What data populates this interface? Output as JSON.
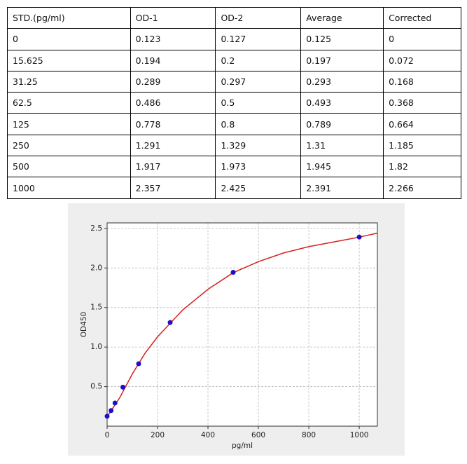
{
  "table": {
    "header": [
      "STD.(pg/ml)",
      "OD-1",
      "OD-2",
      "Average",
      "Corrected"
    ],
    "rows": [
      [
        "0",
        "0.123",
        "0.127",
        "0.125",
        "0"
      ],
      [
        "15.625",
        "0.194",
        "0.2",
        "0.197",
        "0.072"
      ],
      [
        "31.25",
        "0.289",
        "0.297",
        "0.293",
        "0.168"
      ],
      [
        "62.5",
        "0.486",
        "0.5",
        "0.493",
        "0.368"
      ],
      [
        "125",
        "0.778",
        "0.8",
        "0.789",
        "0.664"
      ],
      [
        "250",
        "1.291",
        "1.329",
        "1.31",
        "1.185"
      ],
      [
        "500",
        "1.917",
        "1.973",
        "1.945",
        "1.82"
      ],
      [
        "1000",
        "2.357",
        "2.425",
        "2.391",
        "2.266"
      ]
    ]
  },
  "chart_data": {
    "type": "scatter",
    "x_label": "pg/ml",
    "y_label": "OD450",
    "xlim": [
      0,
      1072
    ],
    "ylim": [
      0,
      2.57
    ],
    "xticks": [
      0,
      200,
      400,
      600,
      800,
      1000
    ],
    "yticks": [
      0.5,
      {
        "value": 1,
        "label": "1.0"
      },
      1.5,
      {
        "value": 2,
        "label": "2.0"
      },
      2.5
    ],
    "grid": true,
    "series": [
      {
        "type": "scatter",
        "color": "#1a10c8",
        "x": [
          0,
          15.625,
          31.25,
          62.5,
          125,
          250,
          500,
          1000
        ],
        "values": [
          0.125,
          0.197,
          0.293,
          0.493,
          0.789,
          1.31,
          1.945,
          2.391
        ]
      },
      {
        "type": "line",
        "color": "#d62020",
        "x": [
          0,
          25,
          50,
          100,
          150,
          200,
          300,
          400,
          500,
          600,
          700,
          800,
          900,
          1000,
          1072
        ],
        "values": [
          0.12,
          0.24,
          0.36,
          0.66,
          0.92,
          1.13,
          1.47,
          1.73,
          1.94,
          2.08,
          2.19,
          2.27,
          2.33,
          2.39,
          2.44
        ]
      }
    ]
  }
}
